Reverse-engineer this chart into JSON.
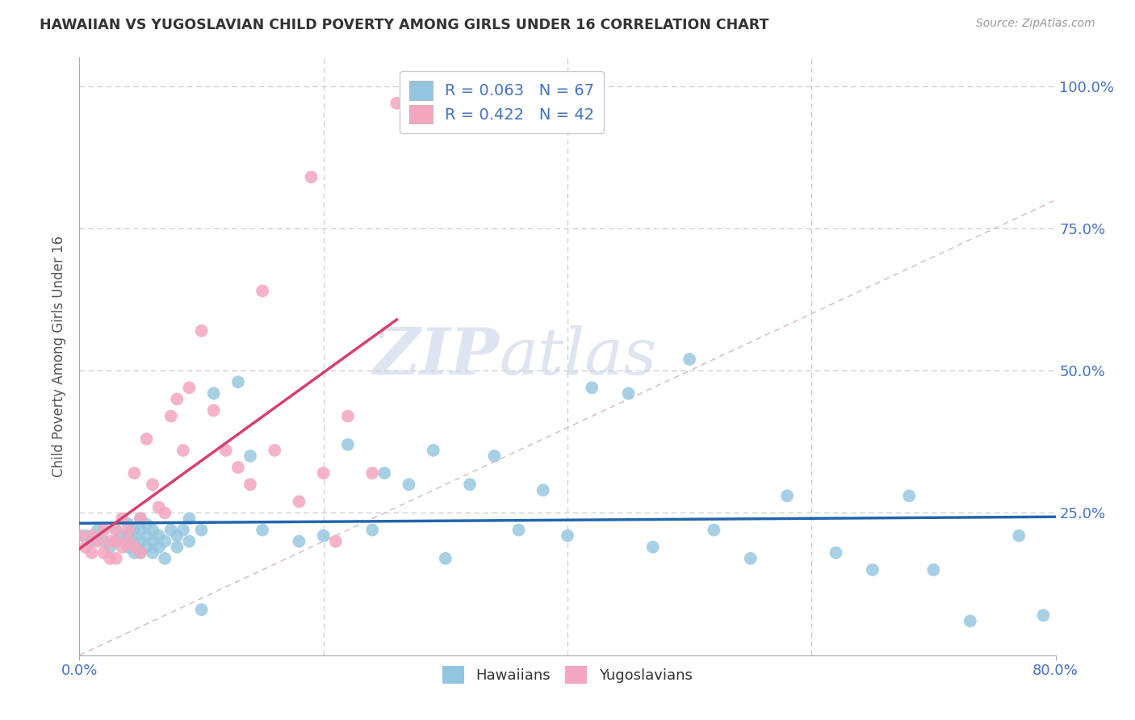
{
  "title": "HAWAIIAN VS YUGOSLAVIAN CHILD POVERTY AMONG GIRLS UNDER 16 CORRELATION CHART",
  "source": "Source: ZipAtlas.com",
  "ylabel": "Child Poverty Among Girls Under 16",
  "xlim": [
    0.0,
    0.8
  ],
  "ylim": [
    0.0,
    1.05
  ],
  "hawaiian_R": 0.063,
  "hawaiian_N": 67,
  "yugoslavian_R": 0.422,
  "yugoslavian_N": 42,
  "hawaiian_color": "#92c5de",
  "yugoslavian_color": "#f4a6be",
  "hawaiian_line_color": "#2166ac",
  "yugoslavian_line_color": "#d6406e",
  "diagonal_color": "#d4b8b8",
  "background_color": "#ffffff",
  "grid_color": "#c8c8c8",
  "title_color": "#333333",
  "axis_label_color": "#555555",
  "tick_label_color": "#4472c4",
  "legend_R_color": "#4472c4",
  "hawaiian_x": [
    0.005,
    0.01,
    0.015,
    0.02,
    0.025,
    0.03,
    0.03,
    0.035,
    0.04,
    0.04,
    0.04,
    0.045,
    0.045,
    0.045,
    0.05,
    0.05,
    0.05,
    0.05,
    0.055,
    0.055,
    0.055,
    0.06,
    0.06,
    0.06,
    0.065,
    0.065,
    0.07,
    0.07,
    0.075,
    0.08,
    0.08,
    0.085,
    0.09,
    0.09,
    0.1,
    0.1,
    0.11,
    0.13,
    0.14,
    0.15,
    0.18,
    0.2,
    0.22,
    0.24,
    0.25,
    0.27,
    0.29,
    0.3,
    0.32,
    0.34,
    0.36,
    0.38,
    0.4,
    0.42,
    0.45,
    0.47,
    0.5,
    0.52,
    0.55,
    0.58,
    0.62,
    0.65,
    0.68,
    0.7,
    0.73,
    0.77,
    0.79
  ],
  "hawaiian_y": [
    0.21,
    0.2,
    0.22,
    0.2,
    0.19,
    0.2,
    0.22,
    0.21,
    0.19,
    0.21,
    0.23,
    0.2,
    0.22,
    0.18,
    0.18,
    0.2,
    0.22,
    0.24,
    0.19,
    0.21,
    0.23,
    0.18,
    0.2,
    0.22,
    0.19,
    0.21,
    0.17,
    0.2,
    0.22,
    0.19,
    0.21,
    0.22,
    0.2,
    0.24,
    0.08,
    0.22,
    0.46,
    0.48,
    0.35,
    0.22,
    0.2,
    0.21,
    0.37,
    0.22,
    0.32,
    0.3,
    0.36,
    0.17,
    0.3,
    0.35,
    0.22,
    0.29,
    0.21,
    0.47,
    0.46,
    0.19,
    0.52,
    0.22,
    0.17,
    0.28,
    0.18,
    0.15,
    0.28,
    0.15,
    0.06,
    0.21,
    0.07
  ],
  "yugoslavian_x": [
    0.0,
    0.005,
    0.01,
    0.01,
    0.015,
    0.02,
    0.02,
    0.025,
    0.025,
    0.03,
    0.03,
    0.03,
    0.035,
    0.035,
    0.04,
    0.04,
    0.045,
    0.045,
    0.05,
    0.05,
    0.055,
    0.06,
    0.065,
    0.07,
    0.075,
    0.08,
    0.085,
    0.09,
    0.1,
    0.11,
    0.12,
    0.13,
    0.14,
    0.15,
    0.16,
    0.18,
    0.19,
    0.2,
    0.21,
    0.22,
    0.24,
    0.26
  ],
  "yugoslavian_y": [
    0.21,
    0.19,
    0.21,
    0.18,
    0.2,
    0.22,
    0.18,
    0.17,
    0.2,
    0.2,
    0.22,
    0.17,
    0.19,
    0.24,
    0.2,
    0.22,
    0.19,
    0.32,
    0.18,
    0.24,
    0.38,
    0.3,
    0.26,
    0.25,
    0.42,
    0.45,
    0.36,
    0.47,
    0.57,
    0.43,
    0.36,
    0.33,
    0.3,
    0.64,
    0.36,
    0.27,
    0.84,
    0.32,
    0.2,
    0.42,
    0.32,
    0.97
  ],
  "watermark_top": "ZIP",
  "watermark_bottom": "atlas",
  "watermark_color": "#d8dff0"
}
